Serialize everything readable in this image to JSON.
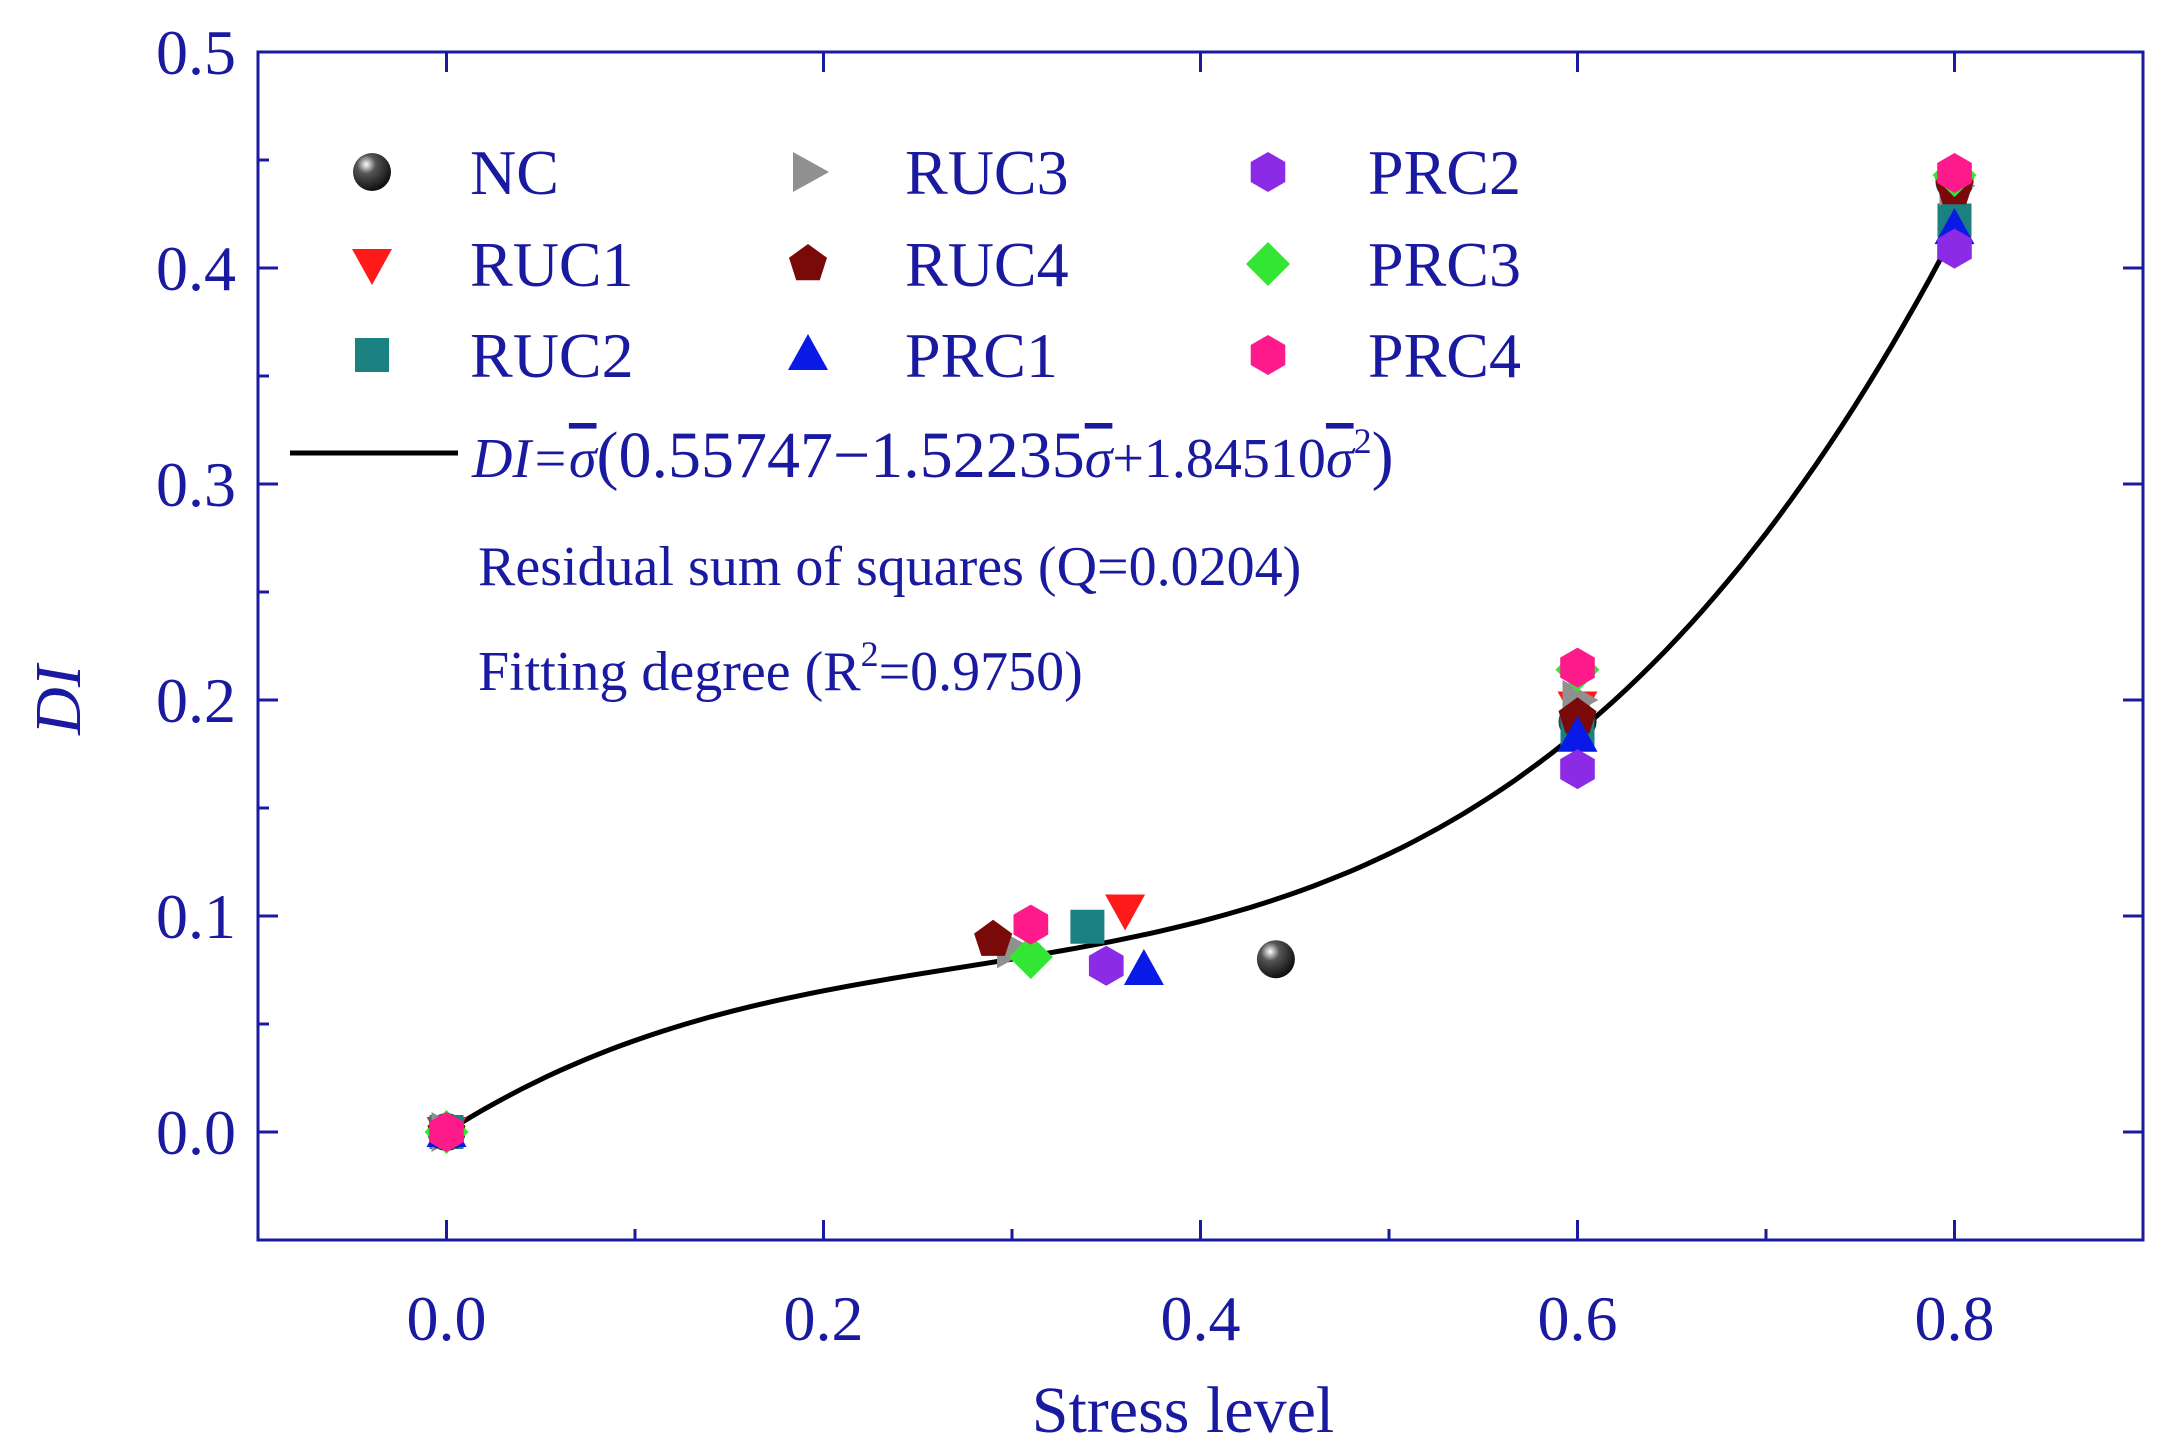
{
  "chart_data": {
    "type": "scatter",
    "xlabel": "Stress level",
    "ylabel": "DI",
    "xlim": [
      -0.1,
      0.9
    ],
    "ylim": [
      -0.05,
      0.5
    ],
    "x_ticks": [
      0.0,
      0.2,
      0.4,
      0.6,
      0.8
    ],
    "x_tick_labels": [
      "0.0",
      "0.2",
      "0.4",
      "0.6",
      "0.8"
    ],
    "y_ticks": [
      0.0,
      0.1,
      0.2,
      0.3,
      0.4,
      0.5
    ],
    "y_tick_labels": [
      "0.0",
      "0.1",
      "0.2",
      "0.3",
      "0.4",
      "0.5"
    ],
    "series": [
      {
        "name": "NC",
        "marker": "sphere",
        "color": "#111111",
        "x": [
          0.0,
          0.44,
          0.6,
          0.8
        ],
        "y": [
          0.0,
          0.08,
          0.19,
          0.44
        ]
      },
      {
        "name": "RUC1",
        "marker": "triangle-down",
        "color": "#ff1a1a",
        "x": [
          0.0,
          0.36,
          0.6,
          0.8
        ],
        "y": [
          0.0,
          0.103,
          0.197,
          0.435
        ]
      },
      {
        "name": "RUC2",
        "marker": "square",
        "color": "#1a8080",
        "x": [
          0.0,
          0.34,
          0.6,
          0.8
        ],
        "y": [
          0.0,
          0.095,
          0.185,
          0.422
        ]
      },
      {
        "name": "RUC3",
        "marker": "triangle-right",
        "color": "#909090",
        "x": [
          0.0,
          0.3,
          0.6,
          0.8
        ],
        "y": [
          0.0,
          0.085,
          0.2,
          0.438
        ]
      },
      {
        "name": "RUC4",
        "marker": "pentagon",
        "color": "#7a0a0a",
        "x": [
          0.0,
          0.29,
          0.6,
          0.8
        ],
        "y": [
          0.0,
          0.089,
          0.192,
          0.437
        ]
      },
      {
        "name": "PRC1",
        "marker": "triangle-up",
        "color": "#0a1ae6",
        "x": [
          0.0,
          0.37,
          0.6,
          0.8
        ],
        "y": [
          0.0,
          0.075,
          0.183,
          0.418
        ]
      },
      {
        "name": "PRC2",
        "marker": "hexagon",
        "color": "#8c2be6",
        "x": [
          0.0,
          0.35,
          0.6,
          0.8
        ],
        "y": [
          0.0,
          0.077,
          0.168,
          0.409
        ]
      },
      {
        "name": "PRC3",
        "marker": "diamond",
        "color": "#33e633",
        "x": [
          0.0,
          0.31,
          0.6,
          0.8
        ],
        "y": [
          0.0,
          0.081,
          0.214,
          0.443
        ]
      },
      {
        "name": "PRC4",
        "marker": "hexagon",
        "color": "#ff1a8c",
        "x": [
          0.0,
          0.31,
          0.6,
          0.8
        ],
        "y": [
          0.0,
          0.096,
          0.215,
          0.444
        ]
      }
    ],
    "fit": {
      "coefficients": [
        0.55747,
        -1.52235,
        1.8451
      ],
      "color": "#000000",
      "x_range": [
        0.0,
        0.8
      ]
    },
    "annotations": {
      "equation_lhs": "DI=",
      "equation_body": "(0.55747−1.52235",
      "equation_plus": "+1.84510",
      "equation_close": ")",
      "sigma": "σ",
      "square_exp": "2",
      "rss": "Residual sum of squares (Q=0.0204)",
      "r2_prefix": "Fitting degree (R",
      "r2_exp": "2",
      "r2_suffix": "=0.9750)"
    },
    "colors": {
      "axis": "#1a1aa0",
      "frame": "#1a1aa0"
    }
  }
}
